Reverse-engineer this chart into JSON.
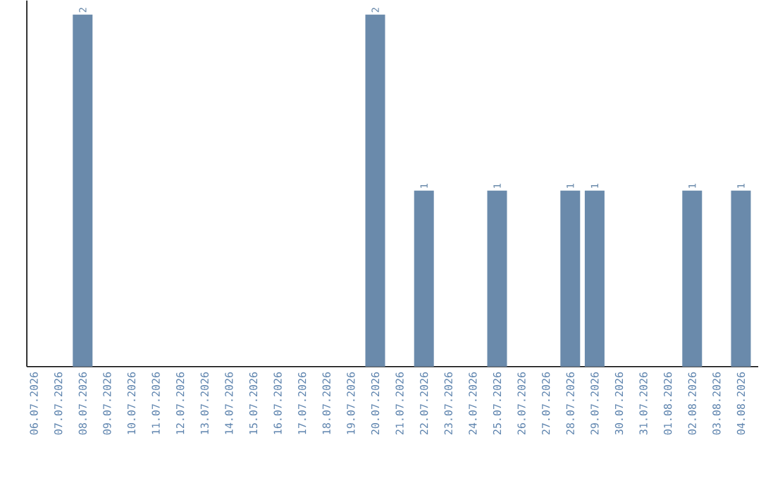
{
  "chart_data": {
    "type": "bar",
    "categories": [
      "06.07.2026",
      "07.07.2026",
      "08.07.2026",
      "09.07.2026",
      "10.07.2026",
      "11.07.2026",
      "12.07.2026",
      "13.07.2026",
      "14.07.2026",
      "15.07.2026",
      "16.07.2026",
      "17.07.2026",
      "18.07.2026",
      "19.07.2026",
      "20.07.2026",
      "21.07.2026",
      "22.07.2026",
      "23.07.2026",
      "24.07.2026",
      "25.07.2026",
      "26.07.2026",
      "27.07.2026",
      "28.07.2026",
      "29.07.2026",
      "30.07.2026",
      "31.07.2026",
      "01.08.2026",
      "02.08.2026",
      "03.08.2026",
      "04.08.2026"
    ],
    "values": [
      0,
      0,
      2,
      0,
      0,
      0,
      0,
      0,
      0,
      0,
      0,
      0,
      0,
      0,
      2,
      0,
      1,
      0,
      0,
      1,
      0,
      0,
      1,
      1,
      0,
      0,
      0,
      1,
      0,
      1
    ],
    "value_labels": [
      null,
      null,
      "2",
      null,
      null,
      null,
      null,
      null,
      null,
      null,
      null,
      null,
      null,
      null,
      "2",
      null,
      "1",
      null,
      null,
      "1",
      null,
      null,
      "1",
      "1",
      null,
      null,
      null,
      "1",
      null,
      "1"
    ],
    "color": "#6a8aab"
  }
}
